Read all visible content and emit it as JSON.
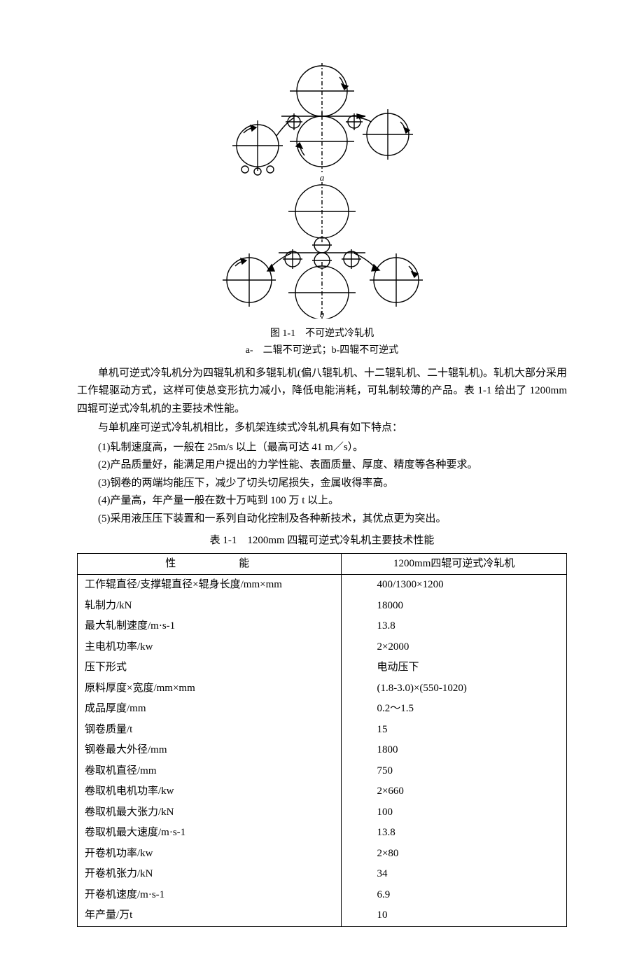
{
  "figure": {
    "diagram_a": {
      "label": "a",
      "main_roll_top_r": 38,
      "main_roll_bot_r": 38,
      "small_r": 10,
      "reel_r": 30,
      "tiny_r": 5,
      "stroke": "#000000",
      "stroke_w": 1.4
    },
    "diagram_b": {
      "label": "b",
      "backup_r": 40,
      "work_r": 12,
      "small_r": 12,
      "reel_r": 32,
      "stroke": "#000000",
      "stroke_w": 1.4
    },
    "caption": "图 1-1　不可逆式冷轧机",
    "subcaption": "a-　二辊不可逆式；b-四辊不可逆式"
  },
  "paragraphs": {
    "p1": "单机可逆式冷轧机分为四辊轧机和多辊轧机(偏八辊轧机、十二辊轧机、二十辊轧机)。轧机大部分采用工作辊驱动方式，这样可使总变形抗力减小，降低电能消耗，可轧制较薄的产品。表 1-1 给出了 1200mm 四辊可逆式冷轧机的主要技术性能。",
    "p2": "与单机座可逆式冷轧机相比，多机架连续式冷轧机具有如下特点："
  },
  "list": [
    "(1)轧制速度高，一般在 25m/s 以上（最高可达 41 m／s）。",
    "(2)产品质量好，能满足用户提出的力学性能、表面质量、厚度、精度等各种要求。",
    "(3)钢卷的两端均能压下，减少了切头切尾损失，金属收得率高。",
    "(4)产量高，年产量一般在数十万吨到 100 万 t 以上。",
    "(5)采用液压压下装置和一系列自动化控制及各种新技术，其优点更为突出。"
  ],
  "table": {
    "caption": "表 1-1　1200mm 四辊可逆式冷轧机主要技术性能",
    "head_col1": "性　　　　能",
    "head_col2": "1200mm四辊可逆式冷轧机",
    "rows": [
      {
        "label": "工作辊直径/支撑辊直径×辊身长度/mm×mm",
        "value": "400/1300×1200"
      },
      {
        "label": "轧制力/kN",
        "value": "18000"
      },
      {
        "label": "最大轧制速度/m·s-1",
        "value": "13.8"
      },
      {
        "label": "主电机功率/kw",
        "value": "2×2000"
      },
      {
        "label": "压下形式",
        "value": "电动压下"
      },
      {
        "label": "原料厚度×宽度/mm×mm",
        "value": "(1.8-3.0)×(550-1020)"
      },
      {
        "label": "成品厚度/mm",
        "value": "0.2～1.5"
      },
      {
        "label": "钢卷质量/t",
        "value": "15"
      },
      {
        "label": "钢卷最大外径/mm",
        "value": "1800"
      },
      {
        "label": "卷取机直径/mm",
        "value": "750"
      },
      {
        "label": "卷取机电机功率/kw",
        "value": "2×660"
      },
      {
        "label": "卷取机最大张力/kN",
        "value": "100"
      },
      {
        "label": "卷取机最大速度/m·s-1",
        "value": "13.8"
      },
      {
        "label": "开卷机功率/kw",
        "value": "2×80"
      },
      {
        "label": "开卷机张力/kN",
        "value": "34"
      },
      {
        "label": "开卷机速度/m·s-1",
        "value": "6.9"
      },
      {
        "label": "年产量/万t",
        "value": "10"
      }
    ],
    "border_color": "#000000",
    "cell_fontsize": 15
  },
  "watermark": ""
}
